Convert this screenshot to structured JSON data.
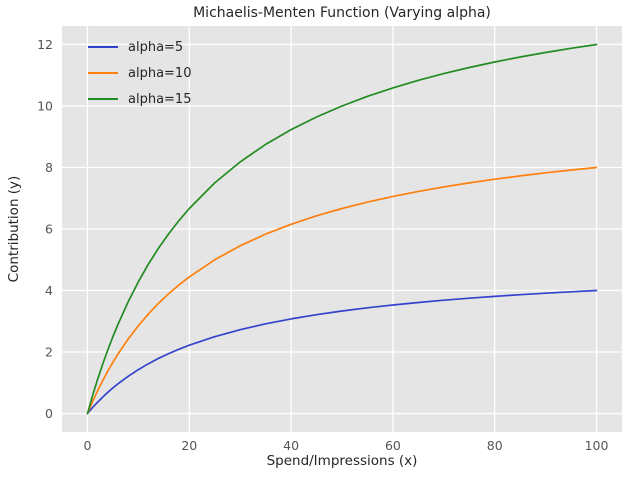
{
  "chart_data": {
    "type": "line",
    "title": "Michaelis-Menten Function (Varying alpha)",
    "xlabel": "Spend/Impressions (x)",
    "ylabel": "Contribution (y)",
    "xlim": [
      -5,
      105
    ],
    "ylim": [
      -0.6,
      12.6
    ],
    "xticks": [
      0,
      20,
      40,
      60,
      80,
      100
    ],
    "yticks": [
      0,
      2,
      4,
      6,
      8,
      10,
      12
    ],
    "grid": true,
    "legend_position": "upper-left",
    "x": [
      0,
      1,
      2,
      3,
      4,
      5,
      6,
      8,
      10,
      12,
      14,
      16,
      18,
      20,
      25,
      30,
      35,
      40,
      45,
      50,
      55,
      60,
      65,
      70,
      75,
      80,
      85,
      90,
      95,
      100
    ],
    "series": [
      {
        "name": "alpha=5",
        "color": "#3344cc",
        "values": [
          0,
          0.192,
          0.37,
          0.536,
          0.69,
          0.833,
          0.968,
          1.212,
          1.429,
          1.622,
          1.795,
          1.951,
          2.093,
          2.222,
          2.5,
          2.727,
          2.917,
          3.077,
          3.214,
          3.333,
          3.438,
          3.529,
          3.611,
          3.684,
          3.75,
          3.81,
          3.864,
          3.913,
          3.958,
          4.0
        ]
      },
      {
        "name": "alpha=10",
        "color": "#ff7f0e",
        "values": [
          0,
          0.385,
          0.741,
          1.071,
          1.379,
          1.667,
          1.935,
          2.424,
          2.857,
          3.243,
          3.59,
          3.902,
          4.186,
          4.444,
          5.0,
          5.455,
          5.833,
          6.154,
          6.429,
          6.667,
          6.875,
          7.059,
          7.222,
          7.368,
          7.5,
          7.619,
          7.727,
          7.826,
          7.917,
          8.0
        ]
      },
      {
        "name": "alpha=15",
        "color": "#228b22",
        "values": [
          0,
          0.577,
          1.111,
          1.607,
          2.069,
          2.5,
          2.903,
          3.636,
          4.286,
          4.865,
          5.385,
          5.854,
          6.279,
          6.667,
          7.5,
          8.182,
          8.75,
          9.231,
          9.643,
          10.0,
          10.313,
          10.588,
          10.833,
          11.053,
          11.25,
          11.429,
          11.591,
          11.739,
          11.875,
          12.0
        ]
      }
    ],
    "colors": {
      "figure_bg": "#ffffff",
      "plot_bg": "#e5e5e5",
      "grid": "#ffffff",
      "tick_text": "#555555",
      "title_text": "#262626"
    }
  }
}
